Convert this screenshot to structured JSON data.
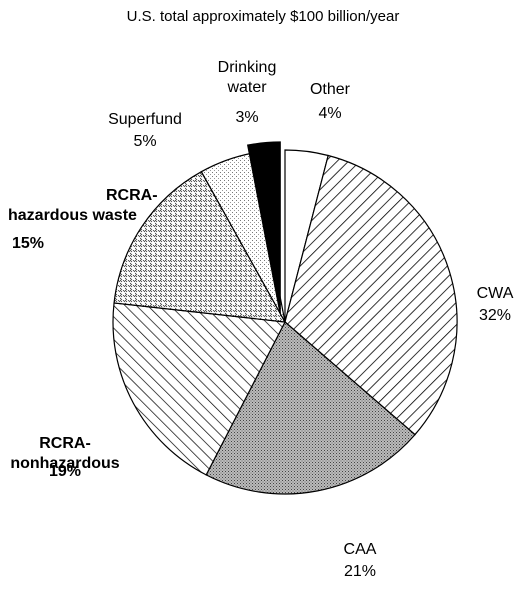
{
  "chart_data": {
    "type": "pie",
    "title": "U.S. total approximately $100 billion/year",
    "categories": [
      "Other",
      "CWA",
      "CAA",
      "RCRA-nonhazardous",
      "RCRA-hazardous waste",
      "Superfund",
      "Drinking water"
    ],
    "values": [
      4,
      32,
      21,
      19,
      15,
      5,
      3
    ],
    "value_labels": [
      "4%",
      "32%",
      "21%",
      "19%",
      "15%",
      "5%",
      "3%"
    ]
  }
}
